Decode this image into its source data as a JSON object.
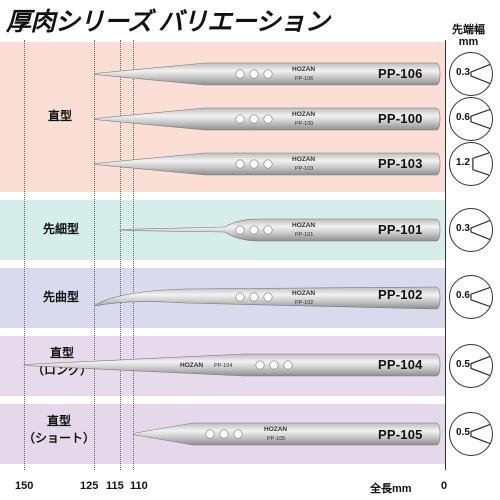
{
  "title": "厚肉シリーズ バリエーション",
  "tip_header": {
    "line1": "先端幅",
    "line2": "mm"
  },
  "colors": {
    "band_straight": "#fbded6",
    "band_fine": "#d6eeea",
    "band_bent": "#dbdaed",
    "band_long": "#e6daec",
    "band_short": "#e5d8ea",
    "steel_light": "#e4e4e4",
    "steel_dark": "#8a8a8a"
  },
  "groups": [
    {
      "id": "straight",
      "label_lines": [
        "直型"
      ]
    },
    {
      "id": "fine",
      "label_lines": [
        "先細型"
      ]
    },
    {
      "id": "bent",
      "label_lines": [
        "先曲型"
      ]
    },
    {
      "id": "long",
      "label_lines": [
        "直型",
        "（ロング）"
      ]
    },
    {
      "id": "short",
      "label_lines": [
        "直型",
        "（ショート）"
      ]
    }
  ],
  "tweezers": [
    {
      "model": "PP-106",
      "engraved_brand": "HOZAN",
      "engraved_model": "PP-106",
      "tip_width": "0.3",
      "length_mm": 125,
      "shape": "straight"
    },
    {
      "model": "PP-100",
      "engraved_brand": "HOZAN",
      "engraved_model": "PP-100",
      "tip_width": "0.6",
      "length_mm": 125,
      "shape": "straight"
    },
    {
      "model": "PP-103",
      "engraved_brand": "HOZAN",
      "engraved_model": "PP-103",
      "tip_width": "1.2",
      "length_mm": 125,
      "shape": "straight"
    },
    {
      "model": "PP-101",
      "engraved_brand": "HOZAN",
      "engraved_model": "PP-101",
      "tip_width": "0.3",
      "length_mm": 115,
      "shape": "fine"
    },
    {
      "model": "PP-102",
      "engraved_brand": "HOZAN",
      "engraved_model": "PP-102",
      "tip_width": "0.6",
      "length_mm": 125,
      "shape": "bent"
    },
    {
      "model": "PP-104",
      "engraved_brand": "HOZAN",
      "engraved_model": "PP-104",
      "tip_width": "0.5",
      "length_mm": 150,
      "shape": "long"
    },
    {
      "model": "PP-105",
      "engraved_brand": "HOZAN",
      "engraved_model": "PP-105",
      "tip_width": "0.5",
      "length_mm": 110,
      "shape": "short"
    }
  ],
  "axis": {
    "ticks": [
      "150",
      "125",
      "115",
      "110"
    ],
    "unit_label": "全長mm",
    "zero": "0"
  }
}
